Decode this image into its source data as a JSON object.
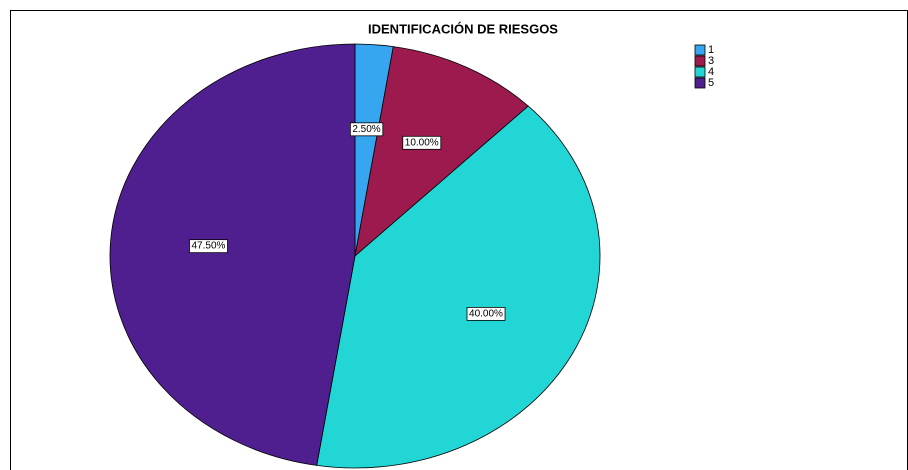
{
  "chart_data": {
    "type": "pie",
    "title": "IDENTIFICACIÓN DE RIESGOS",
    "categories": [
      "1",
      "3",
      "4",
      "5"
    ],
    "values": [
      2.5,
      10,
      40,
      47.5
    ],
    "value_labels": [
      "2.50%",
      "10.00%",
      "40.00%",
      "47.50%"
    ],
    "colors": [
      "#35a6ef",
      "#9c1a4d",
      "#22d6d6",
      "#4f1f90"
    ],
    "legend": "upper right"
  }
}
